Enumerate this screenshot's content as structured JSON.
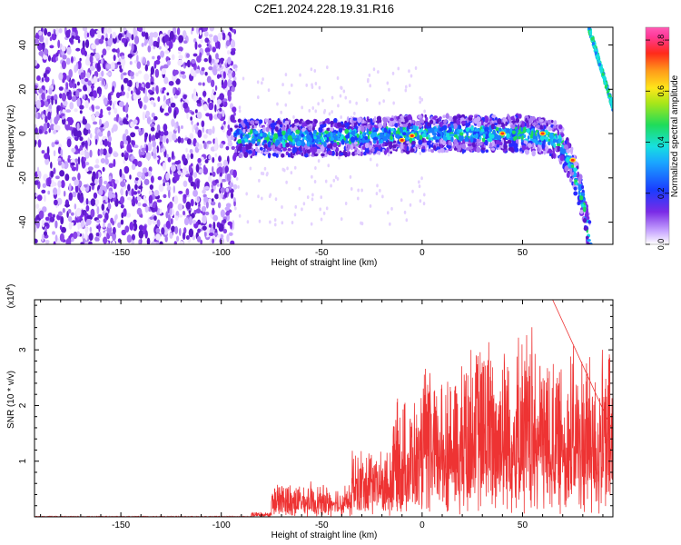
{
  "title": "C2E1.2024.228.19.31.R16",
  "colors": {
    "series": "#ee3333",
    "spectrum_noise": "#7a2be6",
    "spectrum_track": "#1a7cff"
  },
  "chart_data": [
    {
      "type": "heatmap",
      "title": "C2E1.2024.228.19.31.R16",
      "xlabel": "Height of straight line (km)",
      "ylabel": "Frequency (Hz)",
      "xlim": [
        -193,
        95
      ],
      "ylim": [
        -50,
        48
      ],
      "xticks": [
        -150,
        -100,
        -50,
        0,
        50
      ],
      "yticks": [
        -40,
        -20,
        0,
        20,
        40
      ],
      "colorbar": {
        "label": "Normalized spectral amplitude",
        "range": [
          0.0,
          0.85
        ],
        "ticks": [
          0.0,
          0.2,
          0.4,
          0.6,
          0.8
        ],
        "colormap": "rainbow (white-violet-blue-cyan-green-yellow-red-pink)"
      },
      "regions": {
        "noise_region_x": [
          -193,
          -93
        ],
        "track_x": [
          -93,
          95
        ],
        "track_frequency": [
          [
            -93,
            -2
          ],
          [
            -50,
            -2
          ],
          [
            0,
            0
          ],
          [
            50,
            0
          ],
          [
            68,
            -3
          ],
          [
            75,
            -15
          ],
          [
            80,
            -30
          ],
          [
            84,
            -50
          ]
        ],
        "upper_branch": [
          [
            83,
            48
          ],
          [
            95,
            12
          ]
        ],
        "peaks": [
          [
            -10,
            -3
          ],
          [
            -5,
            -1
          ],
          [
            40,
            0
          ],
          [
            60,
            0
          ],
          [
            75,
            -12
          ]
        ]
      },
      "grid": false
    },
    {
      "type": "line",
      "xlabel": "Height of straight line (km)",
      "ylabel": "SNR (10 * v/v)",
      "yscale_label": "(x10",
      "yscale_exp": "4",
      "scale": 10000,
      "xlim": [
        -193,
        95
      ],
      "ylim": [
        0,
        3.9
      ],
      "xticks": [
        -150,
        -100,
        -50,
        0,
        50
      ],
      "yticks": [
        1,
        2,
        3
      ],
      "series": [
        {
          "color": "#ee3333",
          "segments": [
            {
              "x_range": [
                -193,
                -85
              ],
              "baseline": 0.0,
              "amp": 0.01
            },
            {
              "x_range": [
                -85,
                -75
              ],
              "baseline": 0.03,
              "amp": 0.06
            },
            {
              "x_range": [
                -75,
                -55
              ],
              "baseline": 0.15,
              "amp": 0.5
            },
            {
              "x_range": [
                -55,
                -35
              ],
              "baseline": 0.2,
              "amp": 0.4
            },
            {
              "x_range": [
                -35,
                -15
              ],
              "baseline": 0.4,
              "amp": 0.9
            },
            {
              "x_range": [
                -15,
                0
              ],
              "baseline": 0.6,
              "amp": 1.6
            },
            {
              "x_range": [
                0,
                20
              ],
              "baseline": 0.8,
              "amp": 2.0
            },
            {
              "x_range": [
                20,
                60
              ],
              "baseline": 0.9,
              "amp": 2.6
            },
            {
              "x_range": [
                60,
                95
              ],
              "baseline": 0.9,
              "amp": 2.2
            }
          ],
          "peak": {
            "x": 65,
            "y": 3.9
          }
        }
      ],
      "grid": false
    }
  ]
}
